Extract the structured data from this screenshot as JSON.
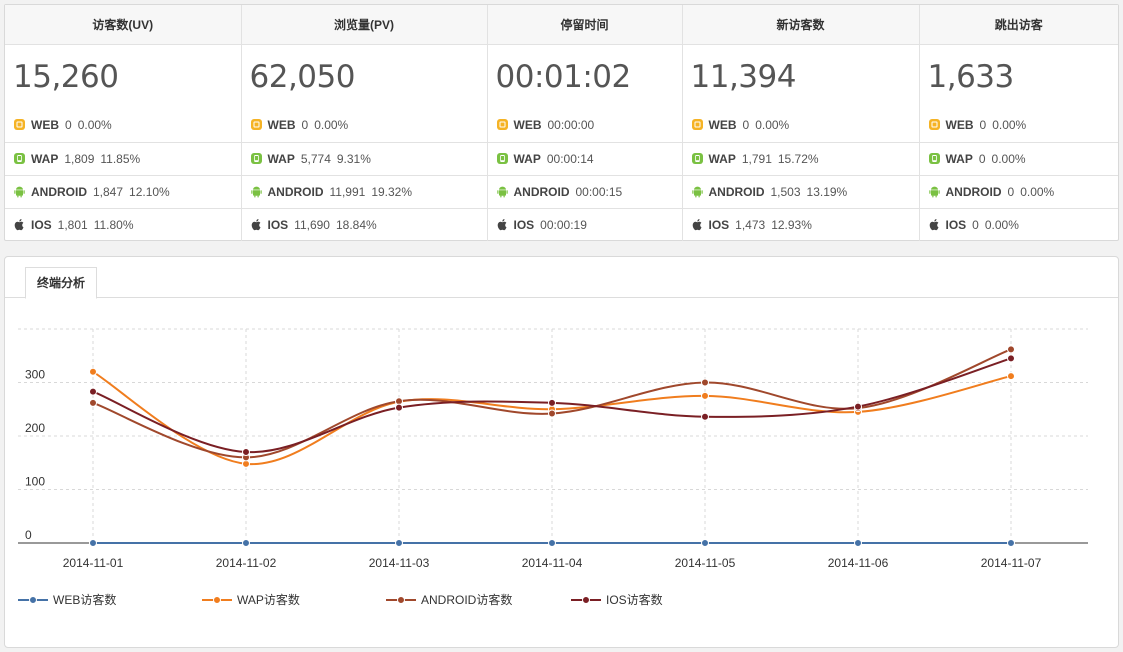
{
  "stats": {
    "columns": [
      {
        "title": "访客数(UV)",
        "total": "15,260",
        "rows": [
          {
            "name": "WEB",
            "value": "0",
            "pct": "0.00%"
          },
          {
            "name": "WAP",
            "value": "1,809",
            "pct": "11.85%"
          },
          {
            "name": "ANDROID",
            "value": "1,847",
            "pct": "12.10%"
          },
          {
            "name": "IOS",
            "value": "1,801",
            "pct": "11.80%"
          }
        ]
      },
      {
        "title": "浏览量(PV)",
        "total": "62,050",
        "rows": [
          {
            "name": "WEB",
            "value": "0",
            "pct": "0.00%"
          },
          {
            "name": "WAP",
            "value": "5,774",
            "pct": "9.31%"
          },
          {
            "name": "ANDROID",
            "value": "11,991",
            "pct": "19.32%"
          },
          {
            "name": "IOS",
            "value": "11,690",
            "pct": "18.84%"
          }
        ]
      },
      {
        "title": "停留时间",
        "total": "00:01:02",
        "rows": [
          {
            "name": "WEB",
            "value": "00:00:00",
            "pct": ""
          },
          {
            "name": "WAP",
            "value": "00:00:14",
            "pct": ""
          },
          {
            "name": "ANDROID",
            "value": "00:00:15",
            "pct": ""
          },
          {
            "name": "IOS",
            "value": "00:00:19",
            "pct": ""
          }
        ]
      },
      {
        "title": "新访客数",
        "total": "11,394",
        "rows": [
          {
            "name": "WEB",
            "value": "0",
            "pct": "0.00%"
          },
          {
            "name": "WAP",
            "value": "1,791",
            "pct": "15.72%"
          },
          {
            "name": "ANDROID",
            "value": "1,503",
            "pct": "13.19%"
          },
          {
            "name": "IOS",
            "value": "1,473",
            "pct": "12.93%"
          }
        ]
      },
      {
        "title": "跳出访客",
        "total": "1,633",
        "rows": [
          {
            "name": "WEB",
            "value": "0",
            "pct": "0.00%"
          },
          {
            "name": "WAP",
            "value": "0",
            "pct": "0.00%"
          },
          {
            "name": "ANDROID",
            "value": "0",
            "pct": "0.00%"
          },
          {
            "name": "IOS",
            "value": "0",
            "pct": "0.00%"
          }
        ]
      }
    ],
    "row_icons": [
      "web-icon",
      "wap-icon",
      "android-icon",
      "apple-icon"
    ],
    "icon_colors": {
      "web": "#f5b325",
      "wap": "#7ac142",
      "android": "#7ac142",
      "ios": "#444444"
    }
  },
  "tabs": [
    {
      "label": "终端分析"
    }
  ],
  "chart_data": {
    "type": "line",
    "title": "",
    "xlabel": "",
    "ylabel": "",
    "x": [
      "2014-11-01",
      "2014-11-02",
      "2014-11-03",
      "2014-11-04",
      "2014-11-05",
      "2014-11-06",
      "2014-11-07"
    ],
    "ylim": [
      0,
      400
    ],
    "yticks": [
      0,
      100,
      200,
      300
    ],
    "grid": true,
    "legend": "bottom-left",
    "series": [
      {
        "name": "WEB访客数",
        "color": "#4572a7",
        "values": [
          0,
          0,
          0,
          0,
          0,
          0,
          0
        ]
      },
      {
        "name": "WAP访客数",
        "color": "#f07d1e",
        "values": [
          320,
          148,
          264,
          250,
          275,
          245,
          312
        ]
      },
      {
        "name": "ANDROID访客数",
        "color": "#a0482c",
        "values": [
          262,
          160,
          265,
          242,
          300,
          252,
          362
        ]
      },
      {
        "name": "IOS访客数",
        "color": "#7a1f24",
        "values": [
          283,
          170,
          253,
          262,
          236,
          255,
          345
        ]
      }
    ]
  }
}
